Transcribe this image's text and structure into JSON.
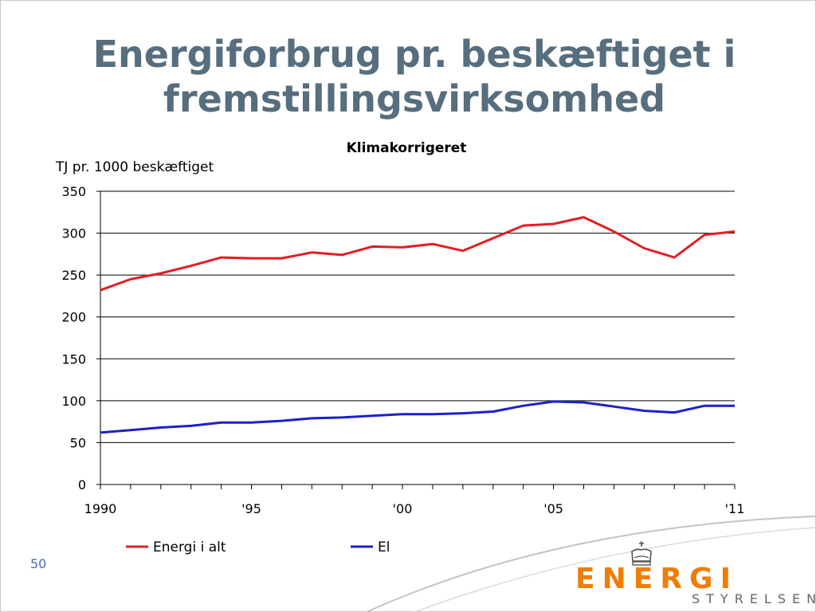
{
  "slide": {
    "title_line1": "Energiforbrug pr. beskæftiget i",
    "title_line2": "fremstillingsvirksomhed",
    "page_number": "50"
  },
  "logo": {
    "word": "ENERGI",
    "sub": "STYRELSEN"
  },
  "colors": {
    "title": "#566e7d",
    "energi_series": "#e31e24",
    "el_series": "#1f1fcc",
    "logo_orange": "#ef7d00"
  },
  "chart_data": {
    "type": "line",
    "title": "Klimakorrigeret",
    "ylabel": "TJ pr. 1000 beskæftiget",
    "xlabel": "",
    "x": [
      1990,
      1991,
      1992,
      1993,
      1994,
      1995,
      1996,
      1997,
      1998,
      1999,
      2000,
      2001,
      2002,
      2003,
      2004,
      2005,
      2006,
      2007,
      2008,
      2009,
      2010,
      2011
    ],
    "x_tick_labels": [
      {
        "x": 1990,
        "label": "1990"
      },
      {
        "x": 1995,
        "label": "'95"
      },
      {
        "x": 2000,
        "label": "'00"
      },
      {
        "x": 2005,
        "label": "'05"
      },
      {
        "x": 2011,
        "label": "'11"
      }
    ],
    "yticks": [
      0,
      50,
      100,
      150,
      200,
      250,
      300,
      350
    ],
    "ylim": [
      0,
      350
    ],
    "grid": "horizontal",
    "legend_position": "bottom",
    "series": [
      {
        "name": "Energi i alt",
        "color": "#e31e24",
        "values": [
          232,
          245,
          252,
          261,
          271,
          270,
          270,
          277,
          274,
          284,
          283,
          287,
          279,
          294,
          309,
          311,
          319,
          302,
          282,
          271,
          298,
          302
        ]
      },
      {
        "name": "El",
        "color": "#1f1fcc",
        "values": [
          62,
          65,
          68,
          70,
          74,
          74,
          76,
          79,
          80,
          82,
          84,
          84,
          85,
          87,
          94,
          99,
          98,
          93,
          88,
          86,
          94,
          94
        ]
      }
    ]
  }
}
